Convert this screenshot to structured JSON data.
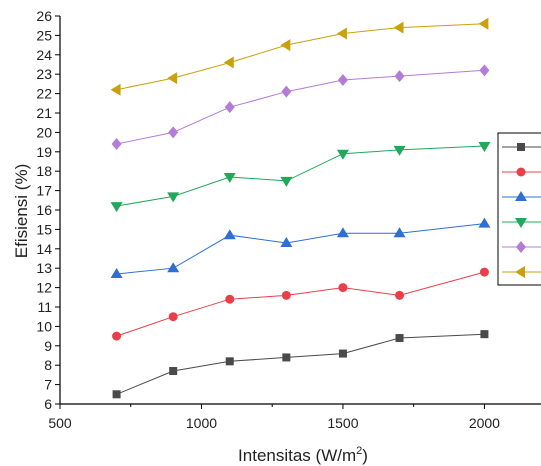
{
  "chart_data": {
    "type": "line",
    "xlabel": "Intensitas (W/m²)",
    "xlabel_main": "Intensitas (W/m",
    "xlabel_sup": "2",
    "xlabel_end": ")",
    "ylabel": "Efisiensi (%)",
    "xlim": [
      500,
      2200
    ],
    "ylim": [
      6,
      26
    ],
    "xticks": [
      500,
      1000,
      1500,
      2000
    ],
    "yticks": [
      6,
      7,
      8,
      9,
      10,
      11,
      12,
      13,
      14,
      15,
      16,
      17,
      18,
      19,
      20,
      21,
      22,
      23,
      24,
      25,
      26
    ],
    "grid": false,
    "legend": "right, partially cut off (series names not visible)",
    "x": [
      700,
      900,
      1100,
      1300,
      1500,
      1700,
      2000
    ],
    "series": [
      {
        "marker": "square",
        "color": "#4a4a4a",
        "values": [
          6.5,
          7.7,
          8.2,
          8.4,
          8.6,
          9.4,
          9.6
        ]
      },
      {
        "marker": "circle",
        "color": "#e8404a",
        "values": [
          9.5,
          10.5,
          11.4,
          11.6,
          12.0,
          11.6,
          12.8
        ]
      },
      {
        "marker": "triangle-up",
        "color": "#2f6fd0",
        "values": [
          12.7,
          13.0,
          14.7,
          14.3,
          14.8,
          14.8,
          15.3
        ]
      },
      {
        "marker": "triangle-down",
        "color": "#22a85a",
        "values": [
          16.2,
          16.7,
          17.7,
          17.5,
          18.9,
          19.1,
          19.3
        ]
      },
      {
        "marker": "diamond",
        "color": "#b57bd8",
        "values": [
          19.4,
          20.0,
          21.3,
          22.1,
          22.7,
          22.9,
          23.2
        ]
      },
      {
        "marker": "triangle-left",
        "color": "#c8a20e",
        "values": [
          22.2,
          22.8,
          23.6,
          24.5,
          25.1,
          25.4,
          25.6
        ]
      }
    ]
  }
}
